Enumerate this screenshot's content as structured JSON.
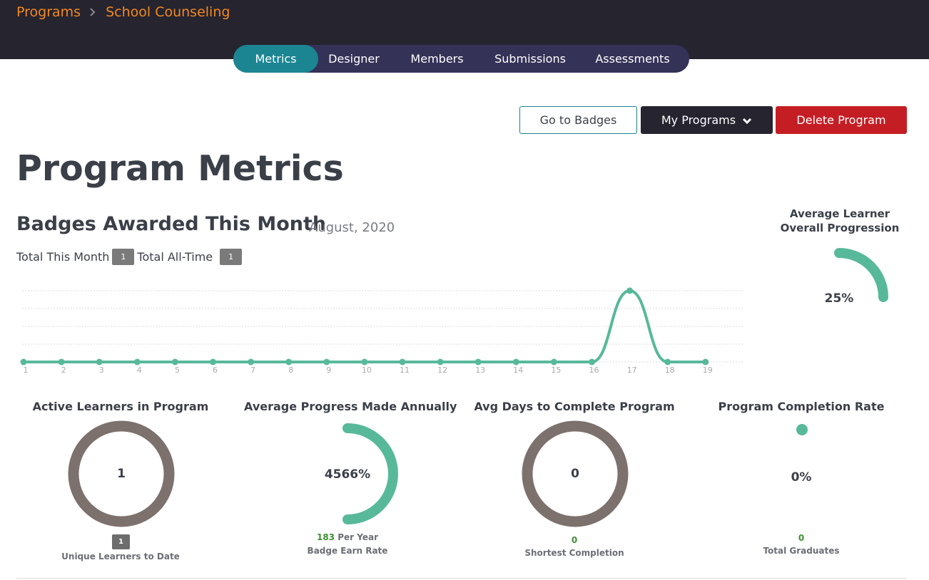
{
  "breadcrumb": {
    "root": "Programs",
    "current": "School Counseling"
  },
  "tabs": [
    {
      "label": "Metrics",
      "active": true
    },
    {
      "label": "Designer",
      "active": false
    },
    {
      "label": "Members",
      "active": false
    },
    {
      "label": "Submissions",
      "active": false
    },
    {
      "label": "Assessments",
      "active": false
    }
  ],
  "actions": {
    "go_to_badges": "Go to Badges",
    "my_programs": "My Programs",
    "delete_program": "Delete Program"
  },
  "page_title": "Program Metrics",
  "badges_section": {
    "title": "Badges Awarded This Month",
    "date": "August, 2020",
    "total_month_label": "Total This Month",
    "total_month_value": "1",
    "total_all_label": "Total All-Time",
    "total_all_value": "1"
  },
  "chart_data": {
    "type": "line",
    "title": "Badges Awarded This Month",
    "x": [
      1,
      2,
      3,
      4,
      5,
      6,
      7,
      8,
      9,
      10,
      11,
      12,
      13,
      14,
      15,
      16,
      17,
      18,
      19
    ],
    "values": [
      0,
      0,
      0,
      0,
      0,
      0,
      0,
      0,
      0,
      0,
      0,
      0,
      0,
      0,
      0,
      0,
      1,
      0,
      0
    ],
    "xlabel": "",
    "ylabel": "",
    "ylim": [
      0,
      1
    ],
    "color": "#57b99a",
    "grid": true
  },
  "avg_learner": {
    "title_line1": "Average Learner",
    "title_line2": "Overall Progression",
    "value": "25%",
    "fraction": 0.25
  },
  "metrics": {
    "active_learners": {
      "title": "Active Learners in Program",
      "value": "1",
      "badge": "1",
      "sub": "Unique Learners to Date"
    },
    "avg_progress": {
      "title": "Average Progress Made Annually",
      "value": "4566%",
      "fraction": 0.5,
      "per_year_value": "183",
      "per_year_label": "Per Year",
      "sub": "Badge Earn Rate"
    },
    "avg_days": {
      "title": "Avg Days to Complete Program",
      "value": "0",
      "sub_value": "0",
      "sub": "Shortest Completion"
    },
    "completion_rate": {
      "title": "Program Completion Rate",
      "value": "0%",
      "fraction": 0,
      "sub_value": "0",
      "sub": "Total Graduates"
    }
  },
  "colors": {
    "accent": "#1b8592",
    "brand_orange": "#f2891f",
    "danger": "#c41e24",
    "gauge_green": "#57b99a",
    "ring_gray": "#7d716d"
  },
  "icons": {
    "breadcrumb_separator": "chevron-right-icon",
    "dropdown": "chevron-down-icon"
  }
}
